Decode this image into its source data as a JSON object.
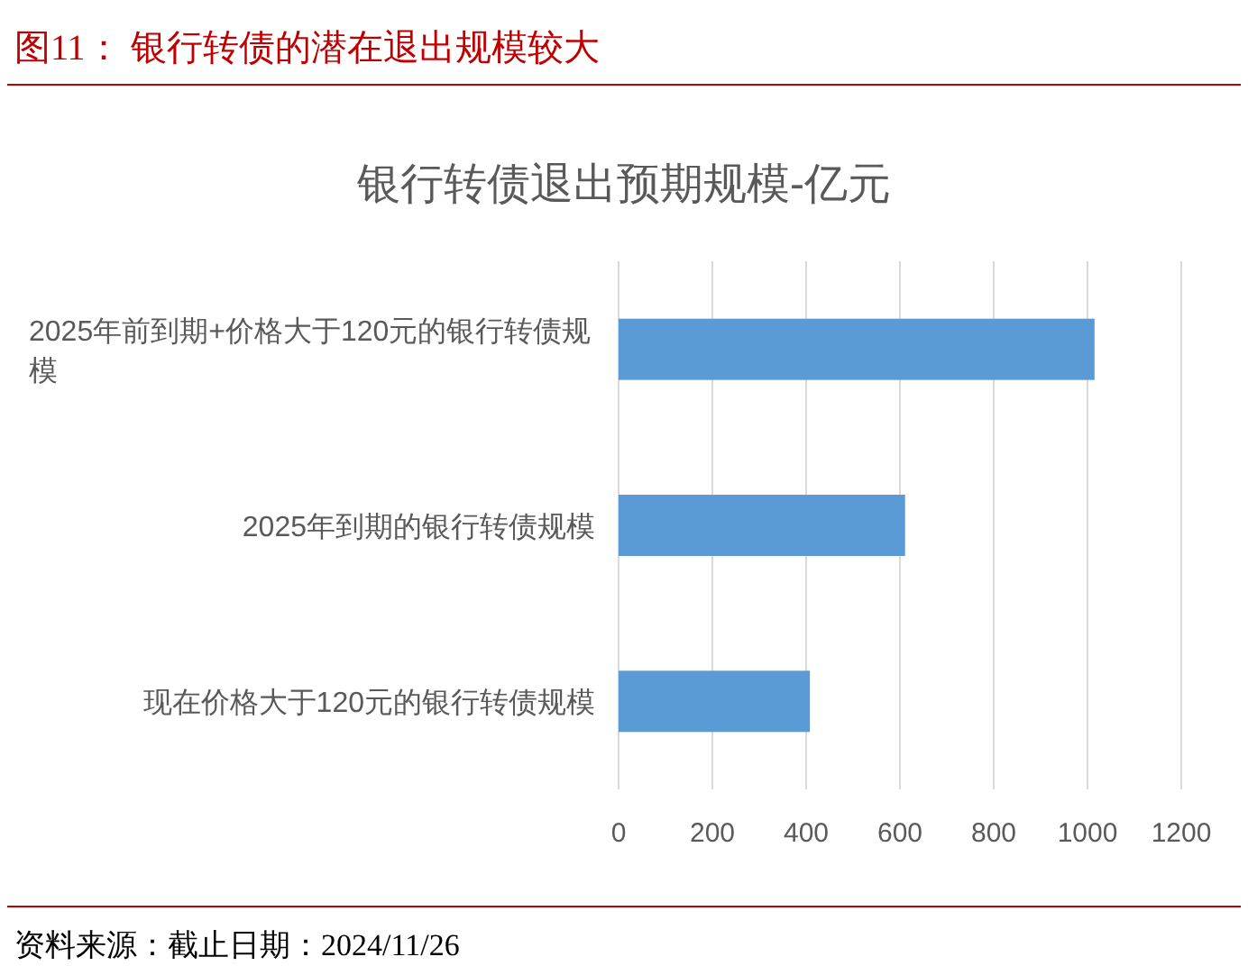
{
  "chart_data": {
    "type": "bar",
    "orientation": "horizontal",
    "title": "图11：  银行转债的潜在退出规模较大",
    "subtitle": "银行转债退出预期规模-亿元",
    "categories": [
      "2025年前到期+价格大于120元的银行转债规模",
      "2025年到期的银行转债规模",
      "现在价格大于120元的银行转债规模"
    ],
    "values": [
      1015,
      611,
      408
    ],
    "color": "#5b9bd5",
    "xlim": [
      0,
      1200
    ],
    "xticks": [
      0,
      200,
      400,
      600,
      800,
      1000,
      1200
    ],
    "grid": "x",
    "annotations": [
      "资料来源：截止日期：2024/11/26"
    ]
  }
}
